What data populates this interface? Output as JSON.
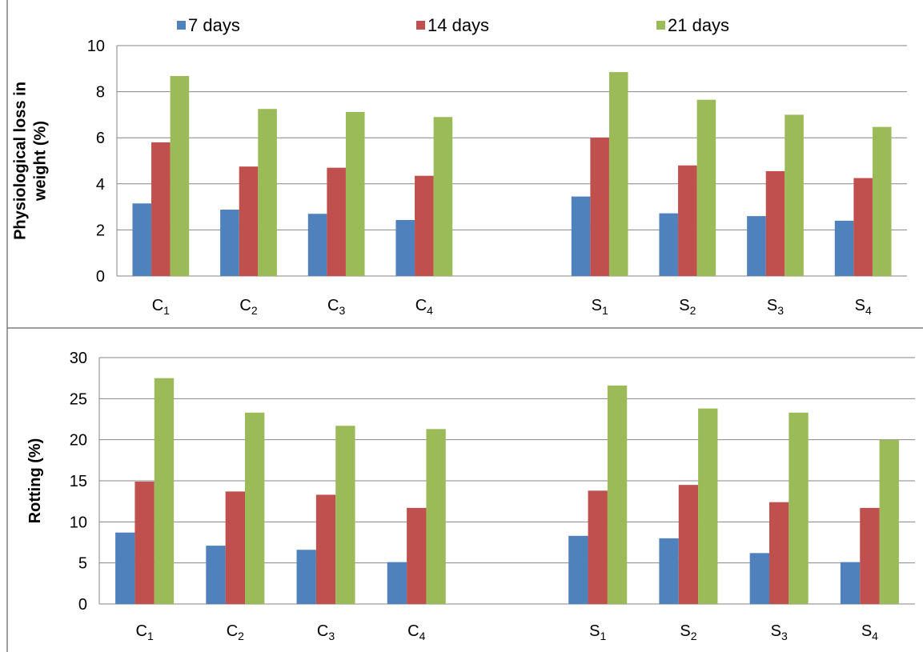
{
  "legend": [
    {
      "label": "7 days",
      "color": "#4F81BD"
    },
    {
      "label": "14 days",
      "color": "#C0504D"
    },
    {
      "label": "21 days",
      "color": "#9BBB59"
    }
  ],
  "chart_data": [
    {
      "type": "bar",
      "ylabel_lines": [
        "Physiological loss in",
        "weight  (%)"
      ],
      "ylim": [
        0,
        10
      ],
      "yticks": [
        0,
        2,
        4,
        6,
        8,
        10
      ],
      "grid": true,
      "legend_position": "top",
      "categories": [
        {
          "base": "C",
          "sub": "1"
        },
        {
          "base": "C",
          "sub": "2"
        },
        {
          "base": "C",
          "sub": "3"
        },
        {
          "base": "C",
          "sub": "4"
        },
        {
          "base": "",
          "sub": ""
        },
        {
          "base": "S",
          "sub": "1"
        },
        {
          "base": "S",
          "sub": "2"
        },
        {
          "base": "S",
          "sub": "3"
        },
        {
          "base": "S",
          "sub": "4"
        }
      ],
      "series": [
        {
          "name": "7 days",
          "values": [
            3.15,
            2.88,
            2.7,
            2.43,
            null,
            3.45,
            2.72,
            2.6,
            2.4
          ]
        },
        {
          "name": "14 days",
          "values": [
            5.8,
            4.75,
            4.7,
            4.35,
            null,
            6.0,
            4.8,
            4.55,
            4.25
          ]
        },
        {
          "name": "21 days",
          "values": [
            8.68,
            7.25,
            7.12,
            6.9,
            null,
            8.85,
            7.65,
            7.0,
            6.47
          ]
        }
      ]
    },
    {
      "type": "bar",
      "ylabel_lines": [
        "Rotting (%)"
      ],
      "ylim": [
        0,
        30
      ],
      "yticks": [
        0,
        5,
        10,
        15,
        20,
        25,
        30
      ],
      "grid": true,
      "categories": [
        {
          "base": "C",
          "sub": "1"
        },
        {
          "base": "C",
          "sub": "2"
        },
        {
          "base": "C",
          "sub": "3"
        },
        {
          "base": "C",
          "sub": "4"
        },
        {
          "base": "",
          "sub": ""
        },
        {
          "base": "S",
          "sub": "1"
        },
        {
          "base": "S",
          "sub": "2"
        },
        {
          "base": "S",
          "sub": "3"
        },
        {
          "base": "S",
          "sub": "4"
        }
      ],
      "series": [
        {
          "name": "7 days",
          "values": [
            8.7,
            7.1,
            6.6,
            5.1,
            null,
            8.3,
            8.0,
            6.2,
            5.1
          ]
        },
        {
          "name": "14 days",
          "values": [
            14.9,
            13.7,
            13.3,
            11.7,
            null,
            13.8,
            14.5,
            12.4,
            11.7
          ]
        },
        {
          "name": "21 days",
          "values": [
            27.5,
            23.3,
            21.7,
            21.3,
            null,
            26.6,
            23.8,
            23.3,
            20.0
          ]
        }
      ]
    }
  ]
}
